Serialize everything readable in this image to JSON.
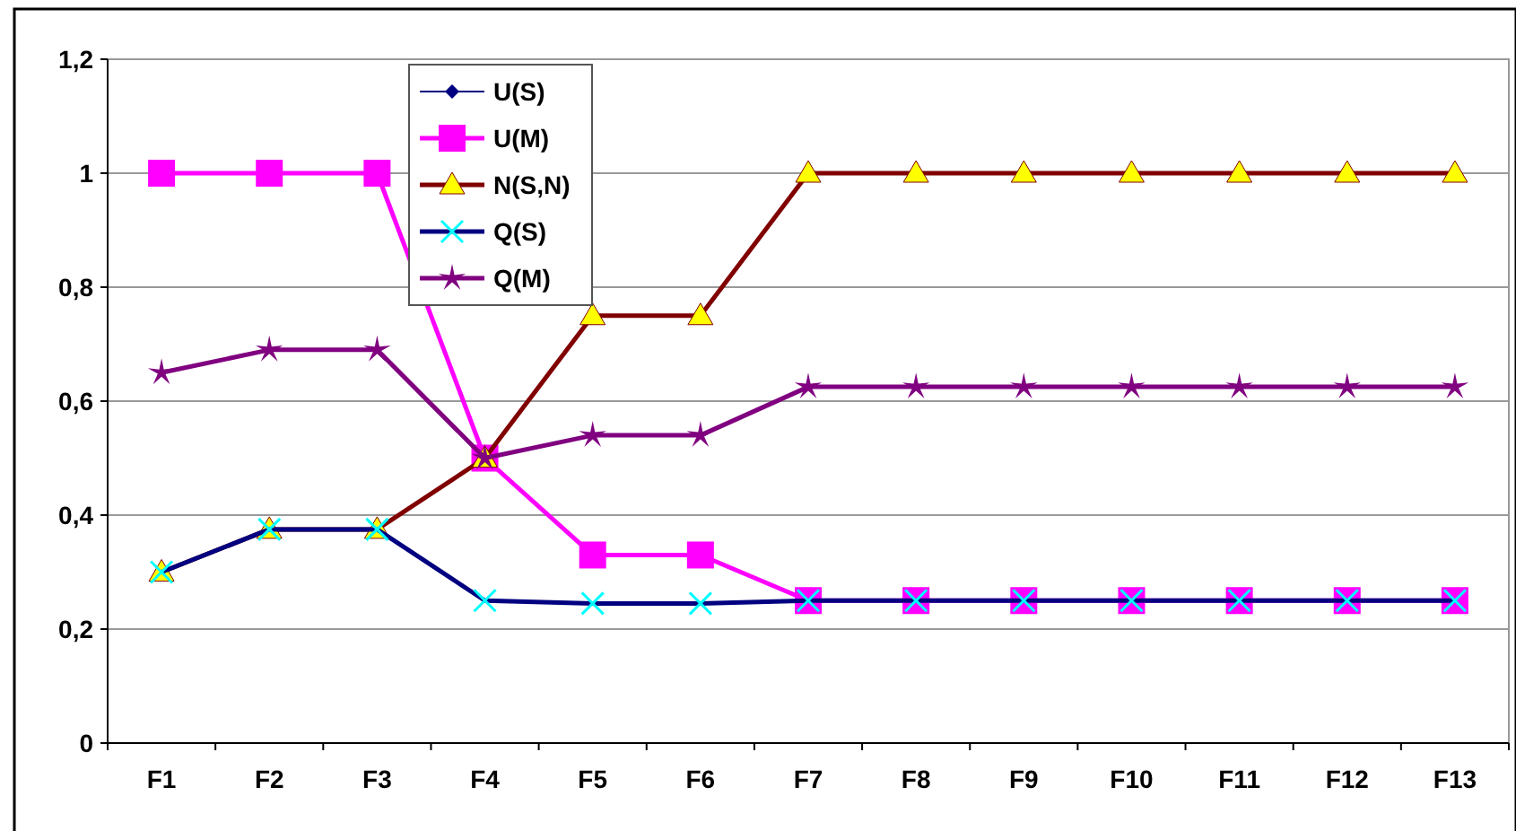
{
  "chart_data": {
    "type": "line",
    "categories": [
      "F1",
      "F2",
      "F3",
      "F4",
      "F5",
      "F6",
      "F7",
      "F8",
      "F9",
      "F10",
      "F11",
      "F12",
      "F13"
    ],
    "ylim": [
      0,
      1.2
    ],
    "yticks": [
      0,
      {
        "value": 0.2,
        "label": "0,2"
      },
      {
        "value": 0.4,
        "label": "0,4"
      },
      {
        "value": 0.6,
        "label": "0,6"
      },
      {
        "value": 0.8,
        "label": "0,8"
      },
      1,
      {
        "value": 1.2,
        "label": "1,2"
      }
    ],
    "grid": "y",
    "legend": "top left",
    "series": [
      {
        "name": "U(S)",
        "color": "#000080",
        "marker": "diamond",
        "values": [
          null,
          null,
          null,
          null,
          null,
          null,
          null,
          null,
          null,
          null,
          null,
          null,
          null
        ]
      },
      {
        "name": "U(M)",
        "color": "#ff00ff",
        "marker": "square",
        "values": [
          1,
          1,
          1,
          0.5,
          0.33,
          0.33,
          0.25,
          0.25,
          0.25,
          0.25,
          0.25,
          0.25,
          0.25
        ]
      },
      {
        "name": "N(S,N)",
        "color": "#800000",
        "marker": "triangle",
        "values": [
          0.3,
          0.375,
          0.375,
          0.5,
          0.75,
          0.75,
          1,
          1,
          1,
          1,
          1,
          1,
          1
        ]
      },
      {
        "name": "Q(S)",
        "color": "#000080",
        "marker": "cross",
        "values": [
          0.3,
          0.375,
          0.375,
          0.25,
          0.245,
          0.245,
          0.25,
          0.25,
          0.25,
          0.25,
          0.25,
          0.25,
          0.25
        ]
      },
      {
        "name": "Q(M)",
        "color": "#800080",
        "marker": "star",
        "values": [
          0.65,
          0.69,
          0.69,
          0.5,
          0.54,
          0.54,
          0.625,
          0.625,
          0.625,
          0.625,
          0.625,
          0.625,
          0.625
        ]
      }
    ]
  }
}
